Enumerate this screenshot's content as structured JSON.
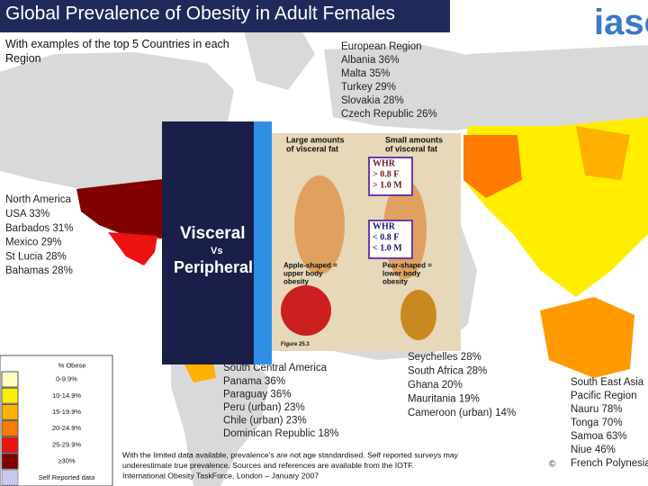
{
  "header": {
    "title": "Global Prevalence of Obesity in Adult Females",
    "subtitle": [
      "With examples of the top 5 Countries in each",
      "Region"
    ],
    "logo": "iaso"
  },
  "regions": [
    {
      "lines": [
        "European Region",
        "Albania 36%",
        "Malta 35%",
        "Turkey 29%",
        "Slovakia 28%",
        "Czech Republic 26%"
      ]
    },
    {
      "lines": [
        "North America",
        "USA 33%",
        "Barbados 31%",
        "Mexico 29%",
        "St Lucia 28%",
        "Bahamas 28%"
      ]
    },
    {
      "lines": [
        "South Central America",
        "Panama 36%",
        "Paraguay 36%",
        "Peru (urban) 23%",
        "Chile (urban) 23%",
        "Dominican Republic 18%"
      ]
    },
    {
      "lines": [
        "Seychelles 28%",
        "South Africa 28%",
        "Ghana 20%",
        "Mauritania 19%",
        "Cameroon (urban) 14%"
      ]
    },
    {
      "lines": [
        "South East Asia",
        "Pacific Region",
        "Nauru 78%",
        "Tonga 70%",
        "Samoa 63%",
        "Niue 46%",
        "French Polynesia"
      ]
    }
  ],
  "legend": {
    "title": "% Obese",
    "items": [
      {
        "label": "0-9.9%",
        "color": "#ffffc0"
      },
      {
        "label": "10-14.9%",
        "color": "#ffee00"
      },
      {
        "label": "15-19.9%",
        "color": "#ffb000"
      },
      {
        "label": "20-24.9%",
        "color": "#ff7a00"
      },
      {
        "label": "25-29.9%",
        "color": "#ee1111"
      },
      {
        "label": "≥30%",
        "color": "#800000"
      },
      {
        "label": "Self Reported data",
        "color": "#c8c8f0"
      }
    ]
  },
  "footnote": [
    "With the limited data available, prevalence's are not age standardised.   Self reported surveys may",
    "underestimate true prevalence.   Sources and references are available from the IOTF.",
    "International Obesity TaskForce, London – January 2007"
  ],
  "copyright": "©",
  "inset": {
    "big_word": "Visceral",
    "vs": "Vs",
    "big_word2": "Peripheral",
    "left_caption": [
      "Large amounts",
      "of visceral fat"
    ],
    "right_caption": [
      "Small amounts",
      "of visceral fat"
    ],
    "whr_high": [
      "WHR",
      "> 0.8 F",
      "> 1.0 M"
    ],
    "whr_low": [
      "WHR",
      "< 0.8 F",
      "< 1.0 M"
    ],
    "apple": [
      "Apple-shaped =",
      "upper body",
      "obesity"
    ],
    "pear": [
      "Pear-shaped =",
      "lower body",
      "obesity"
    ],
    "figure": "Figure 25.3"
  }
}
